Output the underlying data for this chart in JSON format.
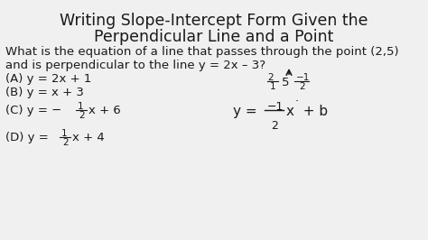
{
  "title_line1": "Writing Slope-Intercept Form Given the",
  "title_line2": "Perpendicular Line and a Point",
  "question_line1": "What is the equation of a line that passes through the point (2,5)",
  "question_line2": "and is perpendicular to the line y = 2x – 3?",
  "answer_A": "(A) y = 2x + 1",
  "answer_B": "(B) y = x + 3",
  "bg_color": "#f0f0f0",
  "text_color": "#1a1a1a",
  "title_fontsize": 12.5,
  "body_fontsize": 9.5,
  "small_fontsize": 7.5,
  "eq_fontsize": 11
}
